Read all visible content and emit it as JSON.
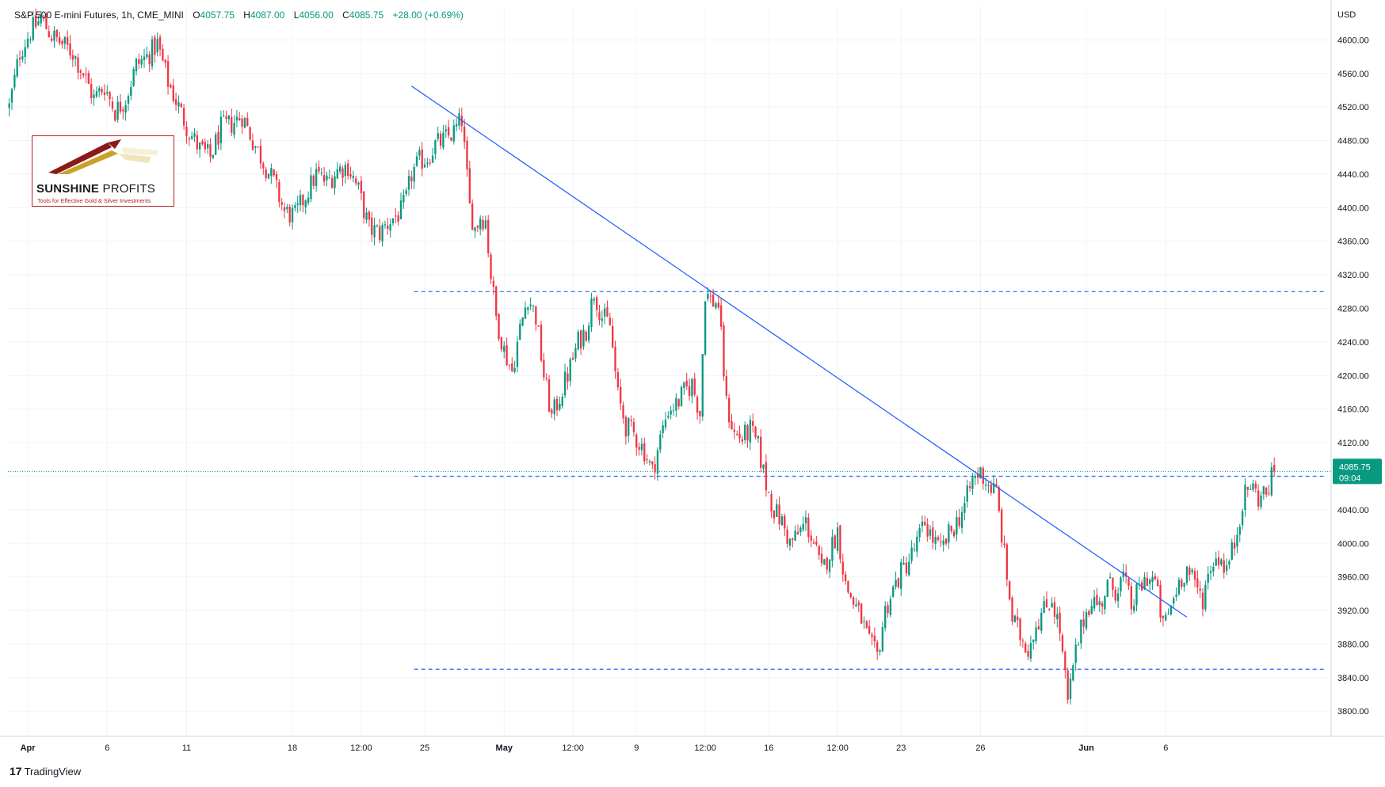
{
  "header": {
    "symbol": "S&P 500 E-mini Futures, 1h, CME_MINI",
    "o_label": "O",
    "o_value": "4057.75",
    "h_label": "H",
    "h_value": "4087.00",
    "l_label": "L",
    "l_value": "4056.00",
    "c_label": "C",
    "c_value": "4085.75",
    "change": "+28.00 (+0.69%)"
  },
  "logo": {
    "title_bold": "SUNSHINE",
    "title_thin": " PROFITS",
    "subtitle": "Tools for Effective Gold & Silver Investments"
  },
  "branding": {
    "mark": "17",
    "name": "TradingView"
  },
  "colors": {
    "up": "#089981",
    "down": "#f23645",
    "trendline": "#2962ff",
    "level": "#2962ff",
    "grid": "#f0f3fa",
    "price_tag": "#089981"
  },
  "chart_data": {
    "type": "candlestick",
    "currency_label": "USD",
    "ylim": [
      3770,
      4640
    ],
    "y_ticks": [
      3800,
      3840,
      3880,
      3920,
      3960,
      4000,
      4040,
      4080,
      4120,
      4160,
      4200,
      4240,
      4280,
      4320,
      4360,
      4400,
      4440,
      4480,
      4520,
      4560,
      4600
    ],
    "y_tick_labels": [
      "3800.00",
      "3840.00",
      "3880.00",
      "3920.00",
      "3960.00",
      "4000.00",
      "4040.00",
      "4080.00",
      "4120.00",
      "4160.00",
      "4200.00",
      "4240.00",
      "4280.00",
      "4320.00",
      "4360.00",
      "4400.00",
      "4440.00",
      "4480.00",
      "4520.00",
      "4560.00",
      "4600.00"
    ],
    "x_ticks": [
      {
        "label": "Apr",
        "bar": 7,
        "bold": true
      },
      {
        "label": "6",
        "bar": 37
      },
      {
        "label": "11",
        "bar": 67
      },
      {
        "label": "18",
        "bar": 107
      },
      {
        "label": "12:00",
        "bar": 133
      },
      {
        "label": "25",
        "bar": 157
      },
      {
        "label": "May",
        "bar": 187,
        "bold": true
      },
      {
        "label": "12:00",
        "bar": 213
      },
      {
        "label": "9",
        "bar": 237
      },
      {
        "label": "12:00",
        "bar": 263
      },
      {
        "label": "16",
        "bar": 287
      },
      {
        "label": "12:00",
        "bar": 313
      },
      {
        "label": "23",
        "bar": 337
      },
      {
        "label": "26",
        "bar": 367
      },
      {
        "label": "Jun",
        "bar": 407,
        "bold": true
      },
      {
        "label": "6",
        "bar": 437
      }
    ],
    "bar_count_visible": 500,
    "last_price": "4085.75",
    "countdown": "09:04",
    "horizontal_levels": [
      4300,
      4080,
      3850
    ],
    "current_price_value": 4085.75,
    "trendline": {
      "from": {
        "bar": 152,
        "price": 4545
      },
      "to": {
        "bar": 445,
        "price": 3912
      }
    },
    "path": [
      [
        0,
        4520
      ],
      [
        4,
        4585
      ],
      [
        8,
        4610
      ],
      [
        12,
        4625
      ],
      [
        16,
        4605
      ],
      [
        20,
        4595
      ],
      [
        24,
        4585
      ],
      [
        28,
        4560
      ],
      [
        32,
        4530
      ],
      [
        36,
        4545
      ],
      [
        40,
        4515
      ],
      [
        44,
        4530
      ],
      [
        48,
        4570
      ],
      [
        52,
        4580
      ],
      [
        56,
        4595
      ],
      [
        60,
        4550
      ],
      [
        64,
        4520
      ],
      [
        68,
        4490
      ],
      [
        72,
        4470
      ],
      [
        76,
        4460
      ],
      [
        80,
        4495
      ],
      [
        84,
        4500
      ],
      [
        88,
        4510
      ],
      [
        92,
        4480
      ],
      [
        96,
        4455
      ],
      [
        100,
        4430
      ],
      [
        104,
        4395
      ],
      [
        108,
        4390
      ],
      [
        112,
        4415
      ],
      [
        116,
        4440
      ],
      [
        120,
        4430
      ],
      [
        124,
        4445
      ],
      [
        128,
        4450
      ],
      [
        132,
        4420
      ],
      [
        136,
        4375
      ],
      [
        140,
        4370
      ],
      [
        144,
        4385
      ],
      [
        148,
        4395
      ],
      [
        150,
        4410
      ],
      [
        152,
        4440
      ],
      [
        155,
        4455
      ],
      [
        158,
        4460
      ],
      [
        161,
        4475
      ],
      [
        164,
        4480
      ],
      [
        168,
        4490
      ],
      [
        171,
        4505
      ],
      [
        174,
        4400
      ],
      [
        176,
        4375
      ],
      [
        178,
        4390
      ],
      [
        180,
        4385
      ],
      [
        182,
        4320
      ],
      [
        184,
        4270
      ],
      [
        187,
        4230
      ],
      [
        190,
        4205
      ],
      [
        193,
        4255
      ],
      [
        196,
        4295
      ],
      [
        199,
        4270
      ],
      [
        202,
        4200
      ],
      [
        205,
        4150
      ],
      [
        208,
        4175
      ],
      [
        212,
        4210
      ],
      [
        215,
        4240
      ],
      [
        218,
        4255
      ],
      [
        221,
        4300
      ],
      [
        224,
        4270
      ],
      [
        227,
        4260
      ],
      [
        230,
        4175
      ],
      [
        233,
        4140
      ],
      [
        236,
        4130
      ],
      [
        240,
        4110
      ],
      [
        243,
        4085
      ],
      [
        246,
        4125
      ],
      [
        249,
        4160
      ],
      [
        252,
        4165
      ],
      [
        255,
        4180
      ],
      [
        258,
        4190
      ],
      [
        261,
        4155
      ],
      [
        263,
        4300
      ],
      [
        265,
        4290
      ],
      [
        268,
        4285
      ],
      [
        271,
        4165
      ],
      [
        274,
        4130
      ],
      [
        277,
        4125
      ],
      [
        280,
        4135
      ],
      [
        283,
        4115
      ],
      [
        286,
        4070
      ],
      [
        289,
        4040
      ],
      [
        292,
        4025
      ],
      [
        295,
        4000
      ],
      [
        298,
        4010
      ],
      [
        301,
        4025
      ],
      [
        304,
        4000
      ],
      [
        307,
        3965
      ],
      [
        310,
        3990
      ],
      [
        313,
        4015
      ],
      [
        316,
        3950
      ],
      [
        319,
        3930
      ],
      [
        322,
        3910
      ],
      [
        325,
        3880
      ],
      [
        328,
        3865
      ],
      [
        331,
        3920
      ],
      [
        334,
        3945
      ],
      [
        337,
        3965
      ],
      [
        340,
        3980
      ],
      [
        343,
        4000
      ],
      [
        346,
        4025
      ],
      [
        349,
        4005
      ],
      [
        352,
        3990
      ],
      [
        355,
        4010
      ],
      [
        358,
        4025
      ],
      [
        361,
        4045
      ],
      [
        364,
        4075
      ],
      [
        367,
        4085
      ],
      [
        370,
        4070
      ],
      [
        373,
        4060
      ],
      [
        376,
        3985
      ],
      [
        379,
        3910
      ],
      [
        382,
        3890
      ],
      [
        385,
        3875
      ],
      [
        388,
        3905
      ],
      [
        391,
        3920
      ],
      [
        394,
        3935
      ],
      [
        397,
        3895
      ],
      [
        400,
        3810
      ],
      [
        403,
        3870
      ],
      [
        406,
        3910
      ],
      [
        409,
        3935
      ],
      [
        412,
        3925
      ],
      [
        415,
        3950
      ],
      [
        418,
        3945
      ],
      [
        421,
        3960
      ],
      [
        424,
        3925
      ],
      [
        427,
        3945
      ],
      [
        430,
        3960
      ],
      [
        433,
        3955
      ],
      [
        436,
        3900
      ],
      [
        439,
        3925
      ],
      [
        442,
        3955
      ],
      [
        445,
        3970
      ],
      [
        448,
        3950
      ],
      [
        451,
        3935
      ],
      [
        454,
        3975
      ],
      [
        457,
        3985
      ],
      [
        460,
        3970
      ],
      [
        463,
        4000
      ],
      [
        466,
        4050
      ],
      [
        469,
        4070
      ],
      [
        472,
        4055
      ],
      [
        475,
        4060
      ],
      [
        478,
        4085.75
      ]
    ]
  }
}
